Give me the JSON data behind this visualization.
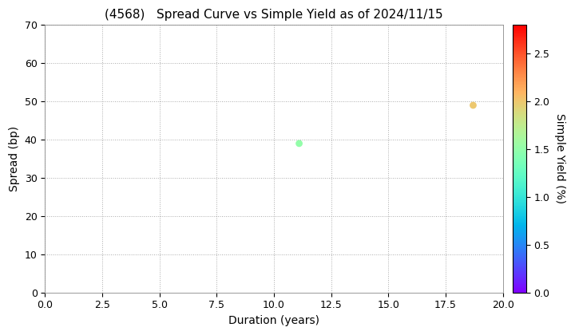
{
  "title": "(4568)   Spread Curve vs Simple Yield as of 2024/11/15",
  "xlabel": "Duration (years)",
  "ylabel": "Spread (bp)",
  "colorbar_label": "Simple Yield (%)",
  "xlim": [
    0.0,
    20.0
  ],
  "ylim": [
    0,
    70
  ],
  "xticks": [
    0.0,
    2.5,
    5.0,
    7.5,
    10.0,
    12.5,
    15.0,
    17.5,
    20.0
  ],
  "yticks": [
    0,
    10,
    20,
    30,
    40,
    50,
    60,
    70
  ],
  "colorbar_min": 0.0,
  "colorbar_max": 2.8,
  "colorbar_ticks": [
    0.0,
    0.5,
    1.0,
    1.5,
    2.0,
    2.5
  ],
  "points": [
    {
      "duration": 11.1,
      "spread": 39,
      "simple_yield": 1.5
    },
    {
      "duration": 18.7,
      "spread": 49,
      "simple_yield": 2.0
    }
  ],
  "marker_size": 40,
  "title_fontsize": 11,
  "axis_label_fontsize": 10,
  "tick_fontsize": 9,
  "background_color": "#ffffff",
  "grid_color": "#aaaaaa",
  "grid_linestyle": "dotted"
}
